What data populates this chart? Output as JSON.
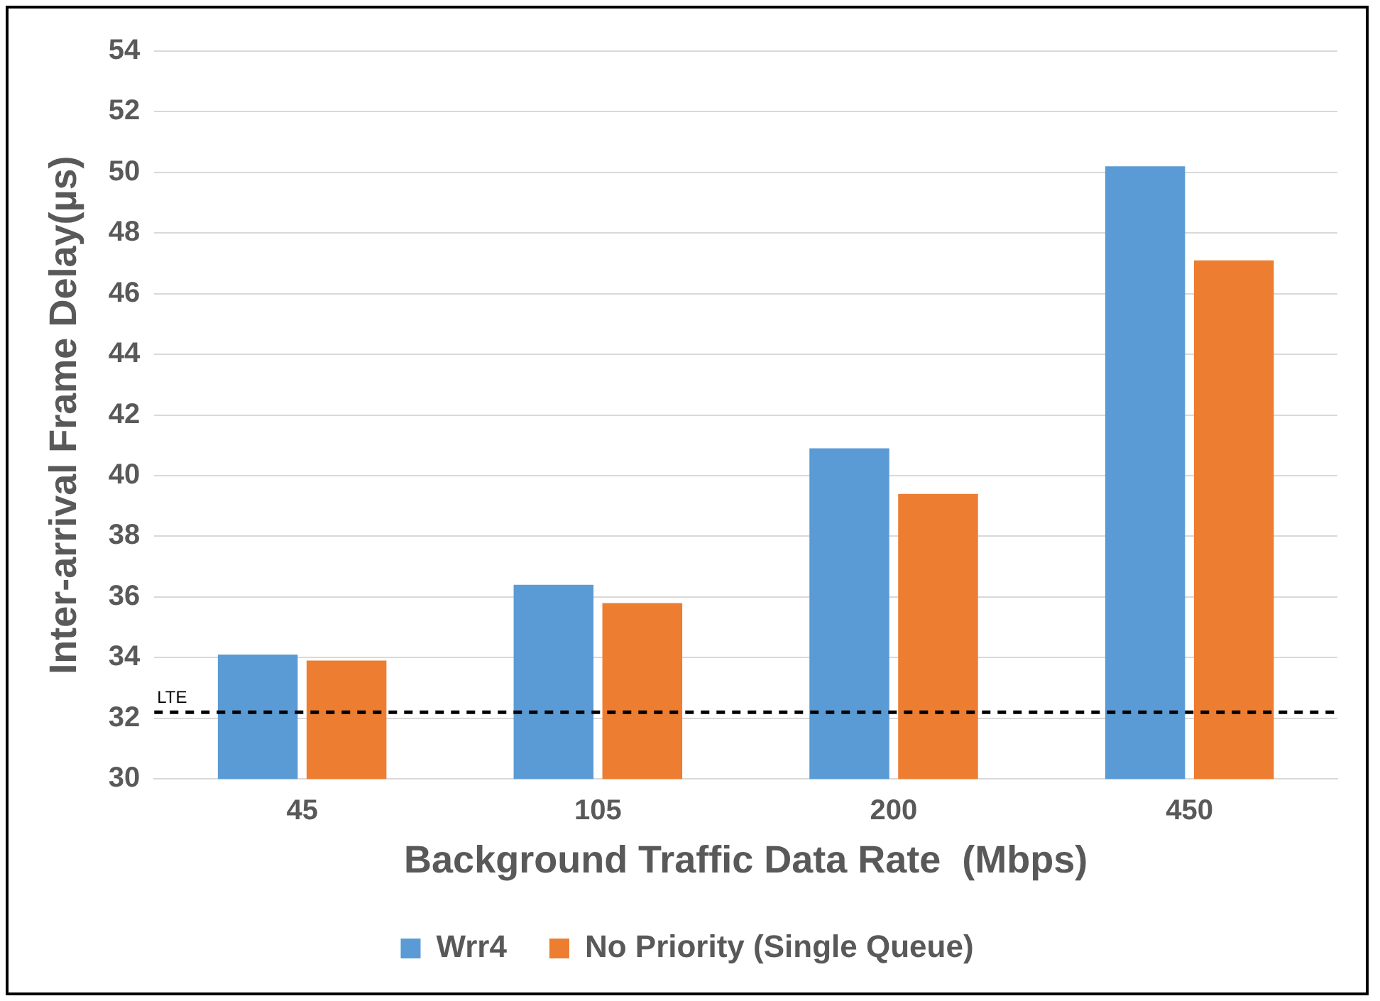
{
  "chart_data": {
    "type": "bar",
    "xlabel": "Background Traffic Data Rate  (Mbps)",
    "ylabel": "Inter-arrival Frame Delay(µs)",
    "categories": [
      "45",
      "105",
      "200",
      "450"
    ],
    "series": [
      {
        "name": "Wrr4",
        "color": "#5b9bd5",
        "values": [
          34.1,
          36.4,
          40.9,
          50.2
        ]
      },
      {
        "name": "No Priority (Single Queue)",
        "color": "#ed7d31",
        "values": [
          33.9,
          35.8,
          39.4,
          47.1
        ]
      }
    ],
    "ylim": [
      30,
      54
    ],
    "yticks": [
      30,
      32,
      34,
      36,
      38,
      40,
      42,
      44,
      46,
      48,
      50,
      52,
      54
    ],
    "grid": "y",
    "legend": "bottom",
    "ref_lines": [
      {
        "axis": "y",
        "value": 32.2,
        "label": "LTE",
        "color": "#000000",
        "line_style": "dashed"
      }
    ]
  }
}
